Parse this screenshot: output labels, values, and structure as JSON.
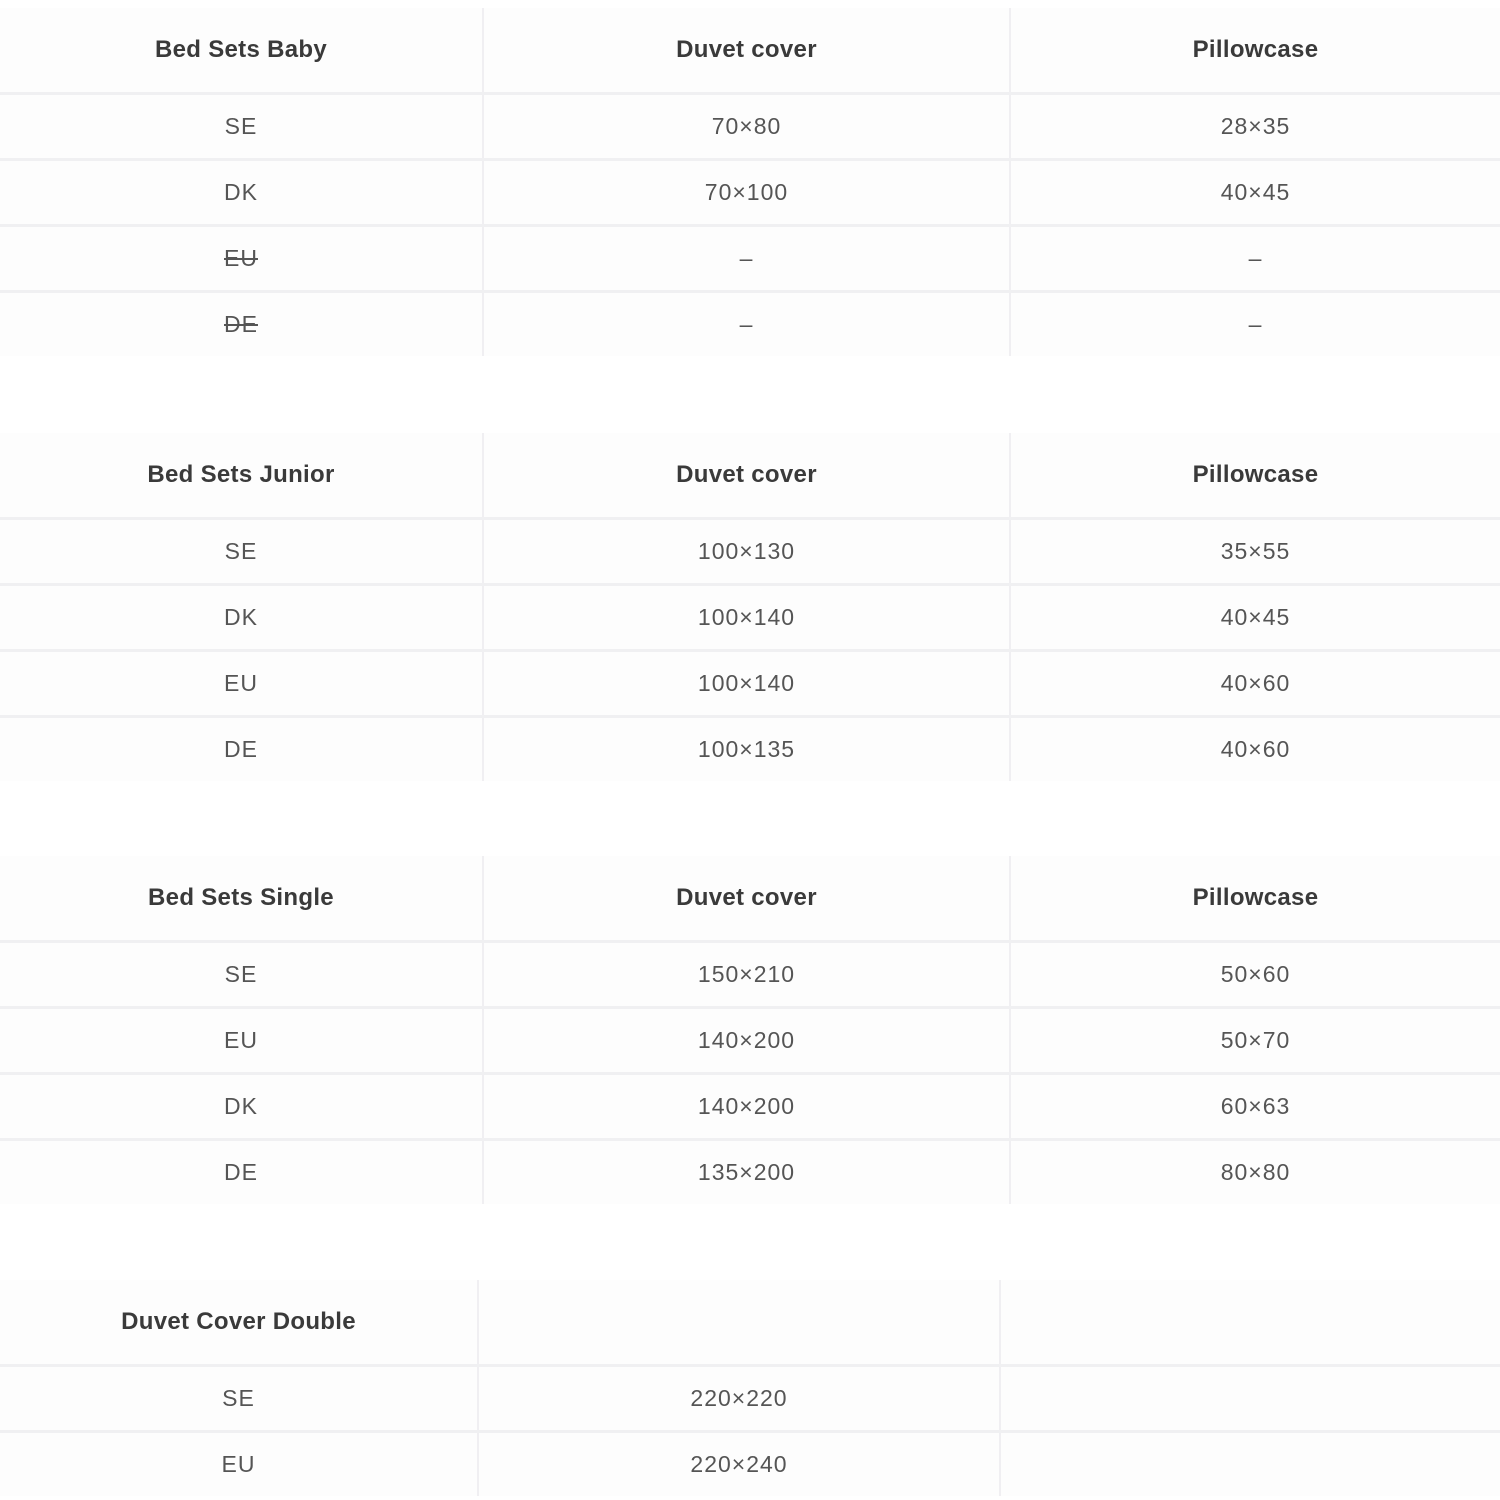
{
  "tables": [
    {
      "title": "Bed Sets Baby",
      "col2": "Duvet cover",
      "col3": "Pillowcase",
      "rows": [
        {
          "region": "SE",
          "duvet": "70×80",
          "pillow": "28×35",
          "struck": false
        },
        {
          "region": "DK",
          "duvet": "70×100",
          "pillow": "40×45",
          "struck": false
        },
        {
          "region": "EU",
          "duvet": "–",
          "pillow": "–",
          "struck": true
        },
        {
          "region": "DE",
          "duvet": "–",
          "pillow": "–",
          "struck": true
        }
      ]
    },
    {
      "title": "Bed Sets Junior",
      "col2": "Duvet cover",
      "col3": "Pillowcase",
      "rows": [
        {
          "region": "SE",
          "duvet": "100×130",
          "pillow": "35×55"
        },
        {
          "region": "DK",
          "duvet": "100×140",
          "pillow": "40×45"
        },
        {
          "region": "EU",
          "duvet": "100×140",
          "pillow": "40×60"
        },
        {
          "region": "DE",
          "duvet": "100×135",
          "pillow": "40×60"
        }
      ]
    },
    {
      "title": "Bed Sets Single",
      "col2": "Duvet cover",
      "col3": "Pillowcase",
      "rows": [
        {
          "region": "SE",
          "duvet": "150×210",
          "pillow": "50×60"
        },
        {
          "region": "EU",
          "duvet": "140×200",
          "pillow": "50×70"
        },
        {
          "region": "DK",
          "duvet": "140×200",
          "pillow": "60×63"
        },
        {
          "region": "DE",
          "duvet": "135×200",
          "pillow": "80×80"
        }
      ]
    },
    {
      "title": "Duvet Cover Double",
      "col2": "",
      "col3": "",
      "rows": [
        {
          "region": "SE",
          "duvet": "220×220",
          "pillow": ""
        },
        {
          "region": "EU",
          "duvet": "220×240",
          "pillow": ""
        }
      ]
    }
  ]
}
